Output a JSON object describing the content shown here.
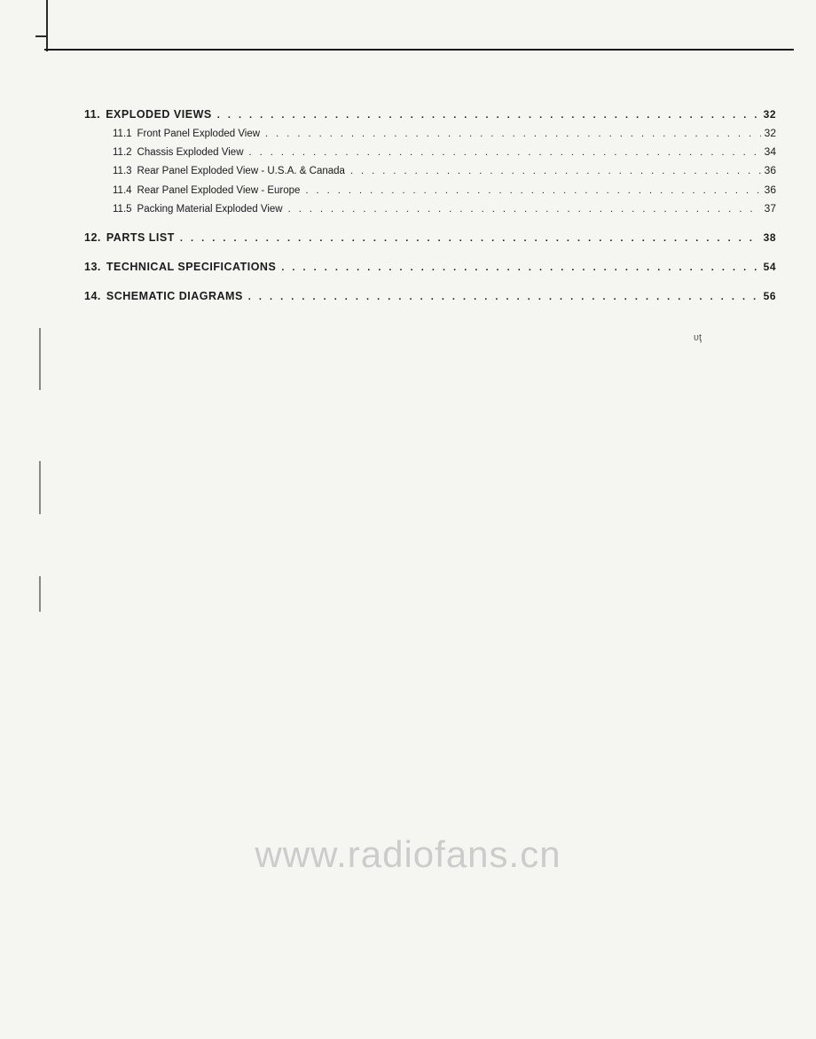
{
  "toc": {
    "sections": [
      {
        "number": "11.",
        "title": "EXPLODED VIEWS",
        "page": "32",
        "subsections": [
          {
            "number": "11.1",
            "title": "Front Panel Exploded View",
            "page": "32"
          },
          {
            "number": "11.2",
            "title": "Chassis Exploded View",
            "page": "34"
          },
          {
            "number": "11.3",
            "title": "Rear Panel Exploded View - U.S.A. & Canada",
            "page": "36"
          },
          {
            "number": "11.4",
            "title": "Rear Panel Exploded View - Europe",
            "page": "36"
          },
          {
            "number": "11.5",
            "title": "Packing Material Exploded View",
            "page": "37"
          }
        ]
      },
      {
        "number": "12.",
        "title": "PARTS LIST",
        "page": "38",
        "subsections": []
      },
      {
        "number": "13.",
        "title": "TECHNICAL SPECIFICATIONS",
        "page": "54",
        "subsections": []
      },
      {
        "number": "14.",
        "title": "SCHEMATIC DIAGRAMS",
        "page": "56",
        "subsections": []
      }
    ]
  },
  "watermark": "www.radiofans.cn",
  "colors": {
    "background": "#f5f5f2",
    "text": "#1a1a1a",
    "watermark": "#cccccc",
    "line": "#1a1a1a"
  },
  "typography": {
    "main_entry_fontsize": 12.5,
    "sub_entry_fontsize": 11.5,
    "watermark_fontsize": 42
  },
  "dots_pattern": ". . . . . . . . . . . . . . . . . . . . . . . . . . . . . . . . . . . . . . . . . . . . . . . . . . . . . . . . . . . . . . . . . . . . . . . . . . . . . . . . . . . . . . . . . . . . . . . . . . . . . . . . . . . . . . . . . . . . . . . . . . . . . . . . . . . ."
}
